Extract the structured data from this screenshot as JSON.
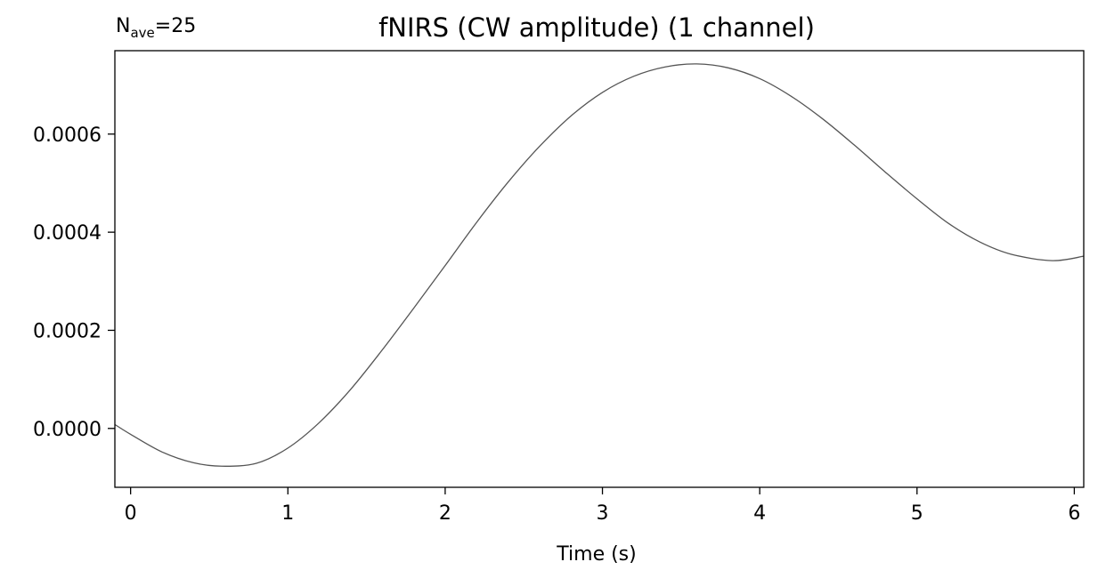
{
  "chart_data": {
    "type": "line",
    "title": "fNIRS (CW amplitude) (1 channel)",
    "annotation": {
      "base": "N",
      "subscript": "ave",
      "suffix": "=25"
    },
    "xlabel": "Time (s)",
    "ylabel": "",
    "xlim": [
      -0.1,
      6.06
    ],
    "ylim": [
      -0.00012,
      0.00077
    ],
    "xticks": [
      0,
      1,
      2,
      3,
      4,
      5,
      6
    ],
    "xtick_labels": [
      "0",
      "1",
      "2",
      "3",
      "4",
      "5",
      "6"
    ],
    "yticks": [
      0.0,
      0.0002,
      0.0004,
      0.0006
    ],
    "ytick_labels": [
      "0.0000",
      "0.0002",
      "0.0004",
      "0.0006"
    ],
    "grid": false,
    "series": [
      {
        "line_color": "#555555",
        "x": [
          -0.1,
          0.0,
          0.2,
          0.4,
          0.58,
          0.8,
          1.0,
          1.2,
          1.4,
          1.6,
          1.8,
          2.0,
          2.2,
          2.4,
          2.6,
          2.8,
          3.0,
          3.2,
          3.4,
          3.6,
          3.8,
          4.0,
          4.2,
          4.4,
          4.6,
          4.8,
          5.0,
          5.2,
          5.4,
          5.6,
          5.86,
          6.06
        ],
        "y": [
          8e-06,
          -1.2e-05,
          -4.8e-05,
          -7e-05,
          -7.7e-05,
          -7.1e-05,
          -4e-05,
          1.2e-05,
          8e-05,
          0.00016,
          0.000245,
          0.000332,
          0.00042,
          0.000502,
          0.000575,
          0.000637,
          0.000685,
          0.000718,
          0.000737,
          0.000743,
          0.000735,
          0.000713,
          0.000677,
          0.000631,
          0.000578,
          0.000522,
          0.000468,
          0.000418,
          0.00038,
          0.000355,
          0.000342,
          0.000351
        ]
      }
    ]
  }
}
